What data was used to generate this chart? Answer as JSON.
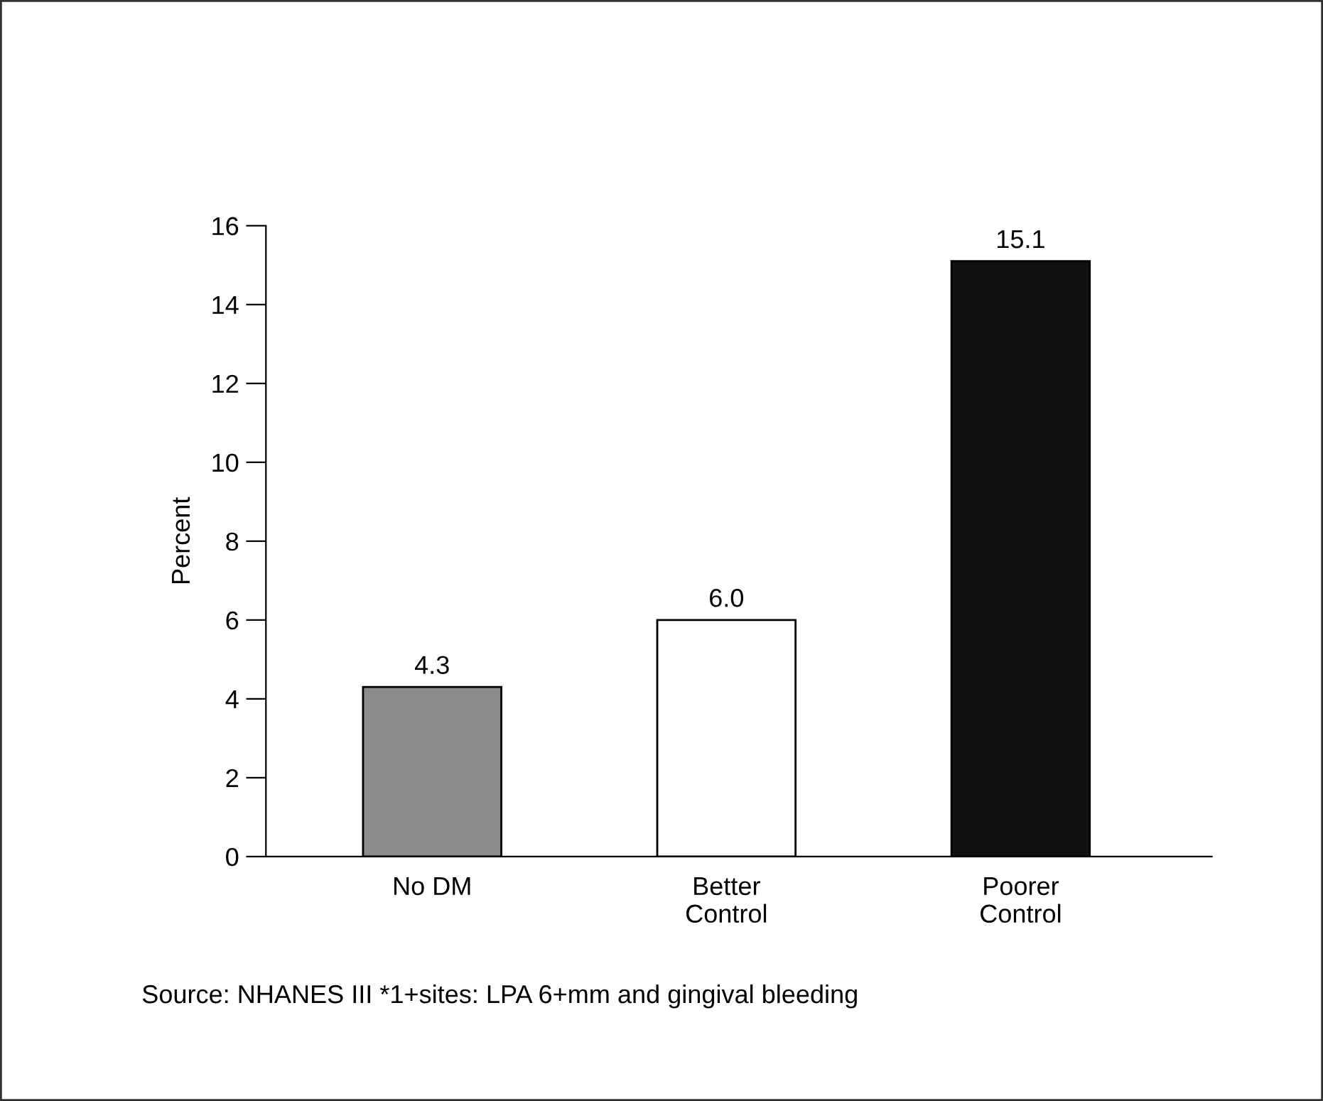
{
  "chart_data": {
    "type": "bar",
    "ylabel": "Percent",
    "categories": [
      "No DM",
      "Better\nControl",
      "Poorer\nControl"
    ],
    "values": [
      4.3,
      6.0,
      15.1
    ],
    "value_labels": [
      "4.3",
      "6.0",
      "15.1"
    ],
    "colors": [
      "#8c8c8c",
      "#ffffff",
      "#111111"
    ],
    "ylim": [
      0,
      16
    ],
    "yticks": [
      0,
      2,
      4,
      6,
      8,
      10,
      12,
      14,
      16
    ],
    "grid": false,
    "legend": false,
    "annotations": [
      "Source: NHANES III *1+sites: LPA 6+mm and gingival bleeding"
    ]
  }
}
